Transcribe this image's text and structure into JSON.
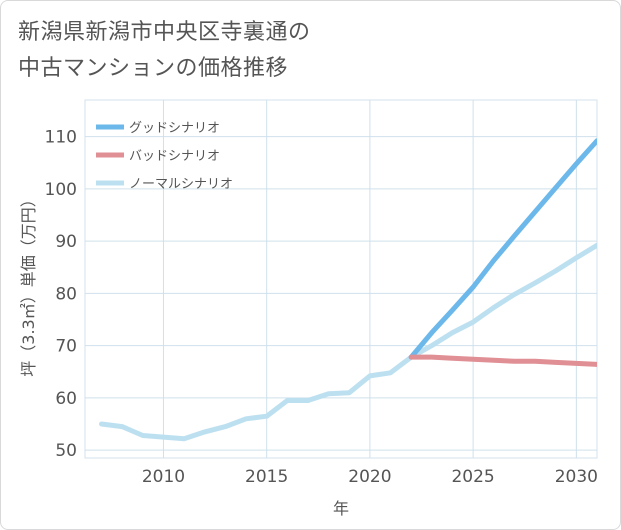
{
  "title_lines": [
    "新潟県新潟市中央区寺裏通の",
    "中古マンションの価格推移"
  ],
  "chart_data": {
    "type": "line",
    "xlabel": "年",
    "ylabel": "坪（3.3㎡）単価（万円）",
    "xlim": [
      2006.2,
      2031
    ],
    "ylim": [
      48.5,
      117
    ],
    "xticks": [
      2010,
      2015,
      2020,
      2025,
      2030
    ],
    "yticks": [
      50,
      60,
      70,
      80,
      90,
      100,
      110
    ],
    "grid": true,
    "legend_position": "top-left",
    "series": [
      {
        "name": "グッドシナリオ",
        "color": "#6cb8ea",
        "x": [
          2022,
          2023,
          2024,
          2025,
          2026,
          2027,
          2028,
          2029,
          2030,
          2031
        ],
        "y": [
          67.8,
          72.5,
          76.8,
          81.2,
          86.3,
          91.0,
          95.6,
          100.2,
          104.8,
          109.2
        ]
      },
      {
        "name": "バッドシナリオ",
        "color": "#e08f94",
        "x": [
          2022,
          2023,
          2024,
          2025,
          2026,
          2027,
          2028,
          2029,
          2030,
          2031
        ],
        "y": [
          67.8,
          67.8,
          67.6,
          67.4,
          67.2,
          67.0,
          67.0,
          66.8,
          66.6,
          66.4
        ]
      },
      {
        "name": "ノーマルシナリオ",
        "color": "#bde0f0",
        "x": [
          2007,
          2008,
          2009,
          2010,
          2011,
          2012,
          2013,
          2014,
          2015,
          2016,
          2017,
          2018,
          2019,
          2020,
          2021,
          2022,
          2023,
          2024,
          2025,
          2026,
          2027,
          2028,
          2029,
          2030,
          2031
        ],
        "y": [
          55.0,
          54.5,
          52.8,
          52.5,
          52.2,
          53.5,
          54.5,
          56.0,
          56.5,
          59.5,
          59.5,
          60.8,
          61.0,
          64.2,
          64.8,
          67.8,
          70.0,
          72.5,
          74.5,
          77.3,
          79.8,
          82.0,
          84.3,
          86.8,
          89.2
        ]
      }
    ]
  }
}
